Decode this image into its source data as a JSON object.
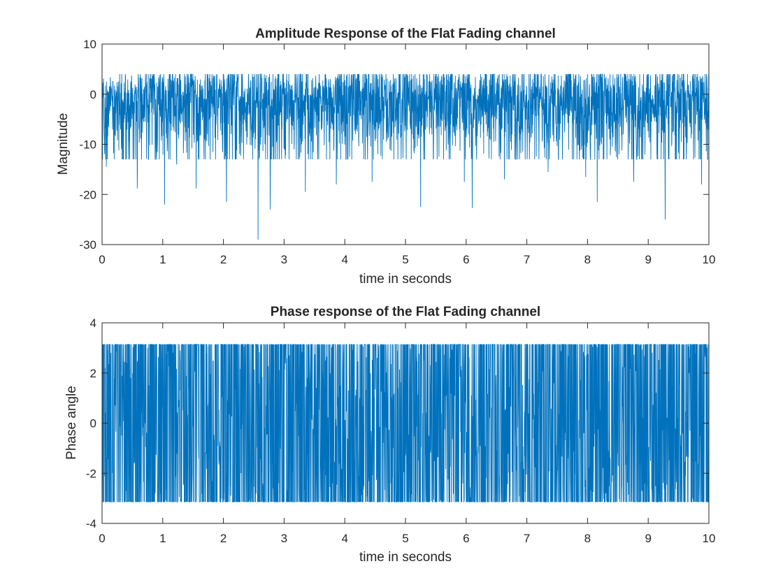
{
  "chart_data": [
    {
      "type": "line",
      "title": "Amplitude Response of the Flat Fading channel",
      "xlabel": "time in seconds",
      "ylabel": "Magnitude",
      "xlim": [
        0,
        10
      ],
      "ylim": [
        -30,
        10
      ],
      "xticks": [
        "0",
        "1",
        "2",
        "3",
        "4",
        "5",
        "6",
        "7",
        "8",
        "9",
        "10"
      ],
      "yticks": [
        "-30",
        "-20",
        "-10",
        "0",
        "10"
      ],
      "series": [
        {
          "name": "",
          "color": "#0072BD",
          "description_values": "dense fading signal sampled over 0-10 s, mostly between about -8 and 3 with deep fades",
          "deep_fades": [
            {
              "x": 0.07,
              "y": -14.5
            },
            {
              "x": 0.58,
              "y": -18.8
            },
            {
              "x": 1.03,
              "y": -22.0
            },
            {
              "x": 1.23,
              "y": -14.0
            },
            {
              "x": 1.55,
              "y": -18.8
            },
            {
              "x": 2.05,
              "y": -21.5
            },
            {
              "x": 2.57,
              "y": -29.0
            },
            {
              "x": 2.77,
              "y": -23.0
            },
            {
              "x": 3.35,
              "y": -19.5
            },
            {
              "x": 3.86,
              "y": -18.0
            },
            {
              "x": 4.45,
              "y": -17.5
            },
            {
              "x": 5.25,
              "y": -22.5
            },
            {
              "x": 5.97,
              "y": -17.5
            },
            {
              "x": 6.1,
              "y": -22.7
            },
            {
              "x": 6.63,
              "y": -17.0
            },
            {
              "x": 7.35,
              "y": -15.5
            },
            {
              "x": 7.97,
              "y": -16.5
            },
            {
              "x": 8.16,
              "y": -21.5
            },
            {
              "x": 8.76,
              "y": -17.5
            },
            {
              "x": 9.28,
              "y": -25.0
            },
            {
              "x": 9.88,
              "y": -18.0
            }
          ],
          "typical_range": [
            -8,
            3
          ],
          "peak_max": 4
        }
      ]
    },
    {
      "type": "line",
      "title": "Phase response of the Flat Fading channel",
      "xlabel": "time in seconds",
      "ylabel": "Phase angle",
      "xlim": [
        0,
        10
      ],
      "ylim": [
        -4,
        4
      ],
      "xticks": [
        "0",
        "1",
        "2",
        "3",
        "4",
        "5",
        "6",
        "7",
        "8",
        "9",
        "10"
      ],
      "yticks": [
        "-4",
        "-2",
        "0",
        "2",
        "4"
      ],
      "series": [
        {
          "name": "",
          "color": "#0072BD",
          "range": [
            -3.1416,
            3.1416
          ]
        }
      ]
    }
  ]
}
